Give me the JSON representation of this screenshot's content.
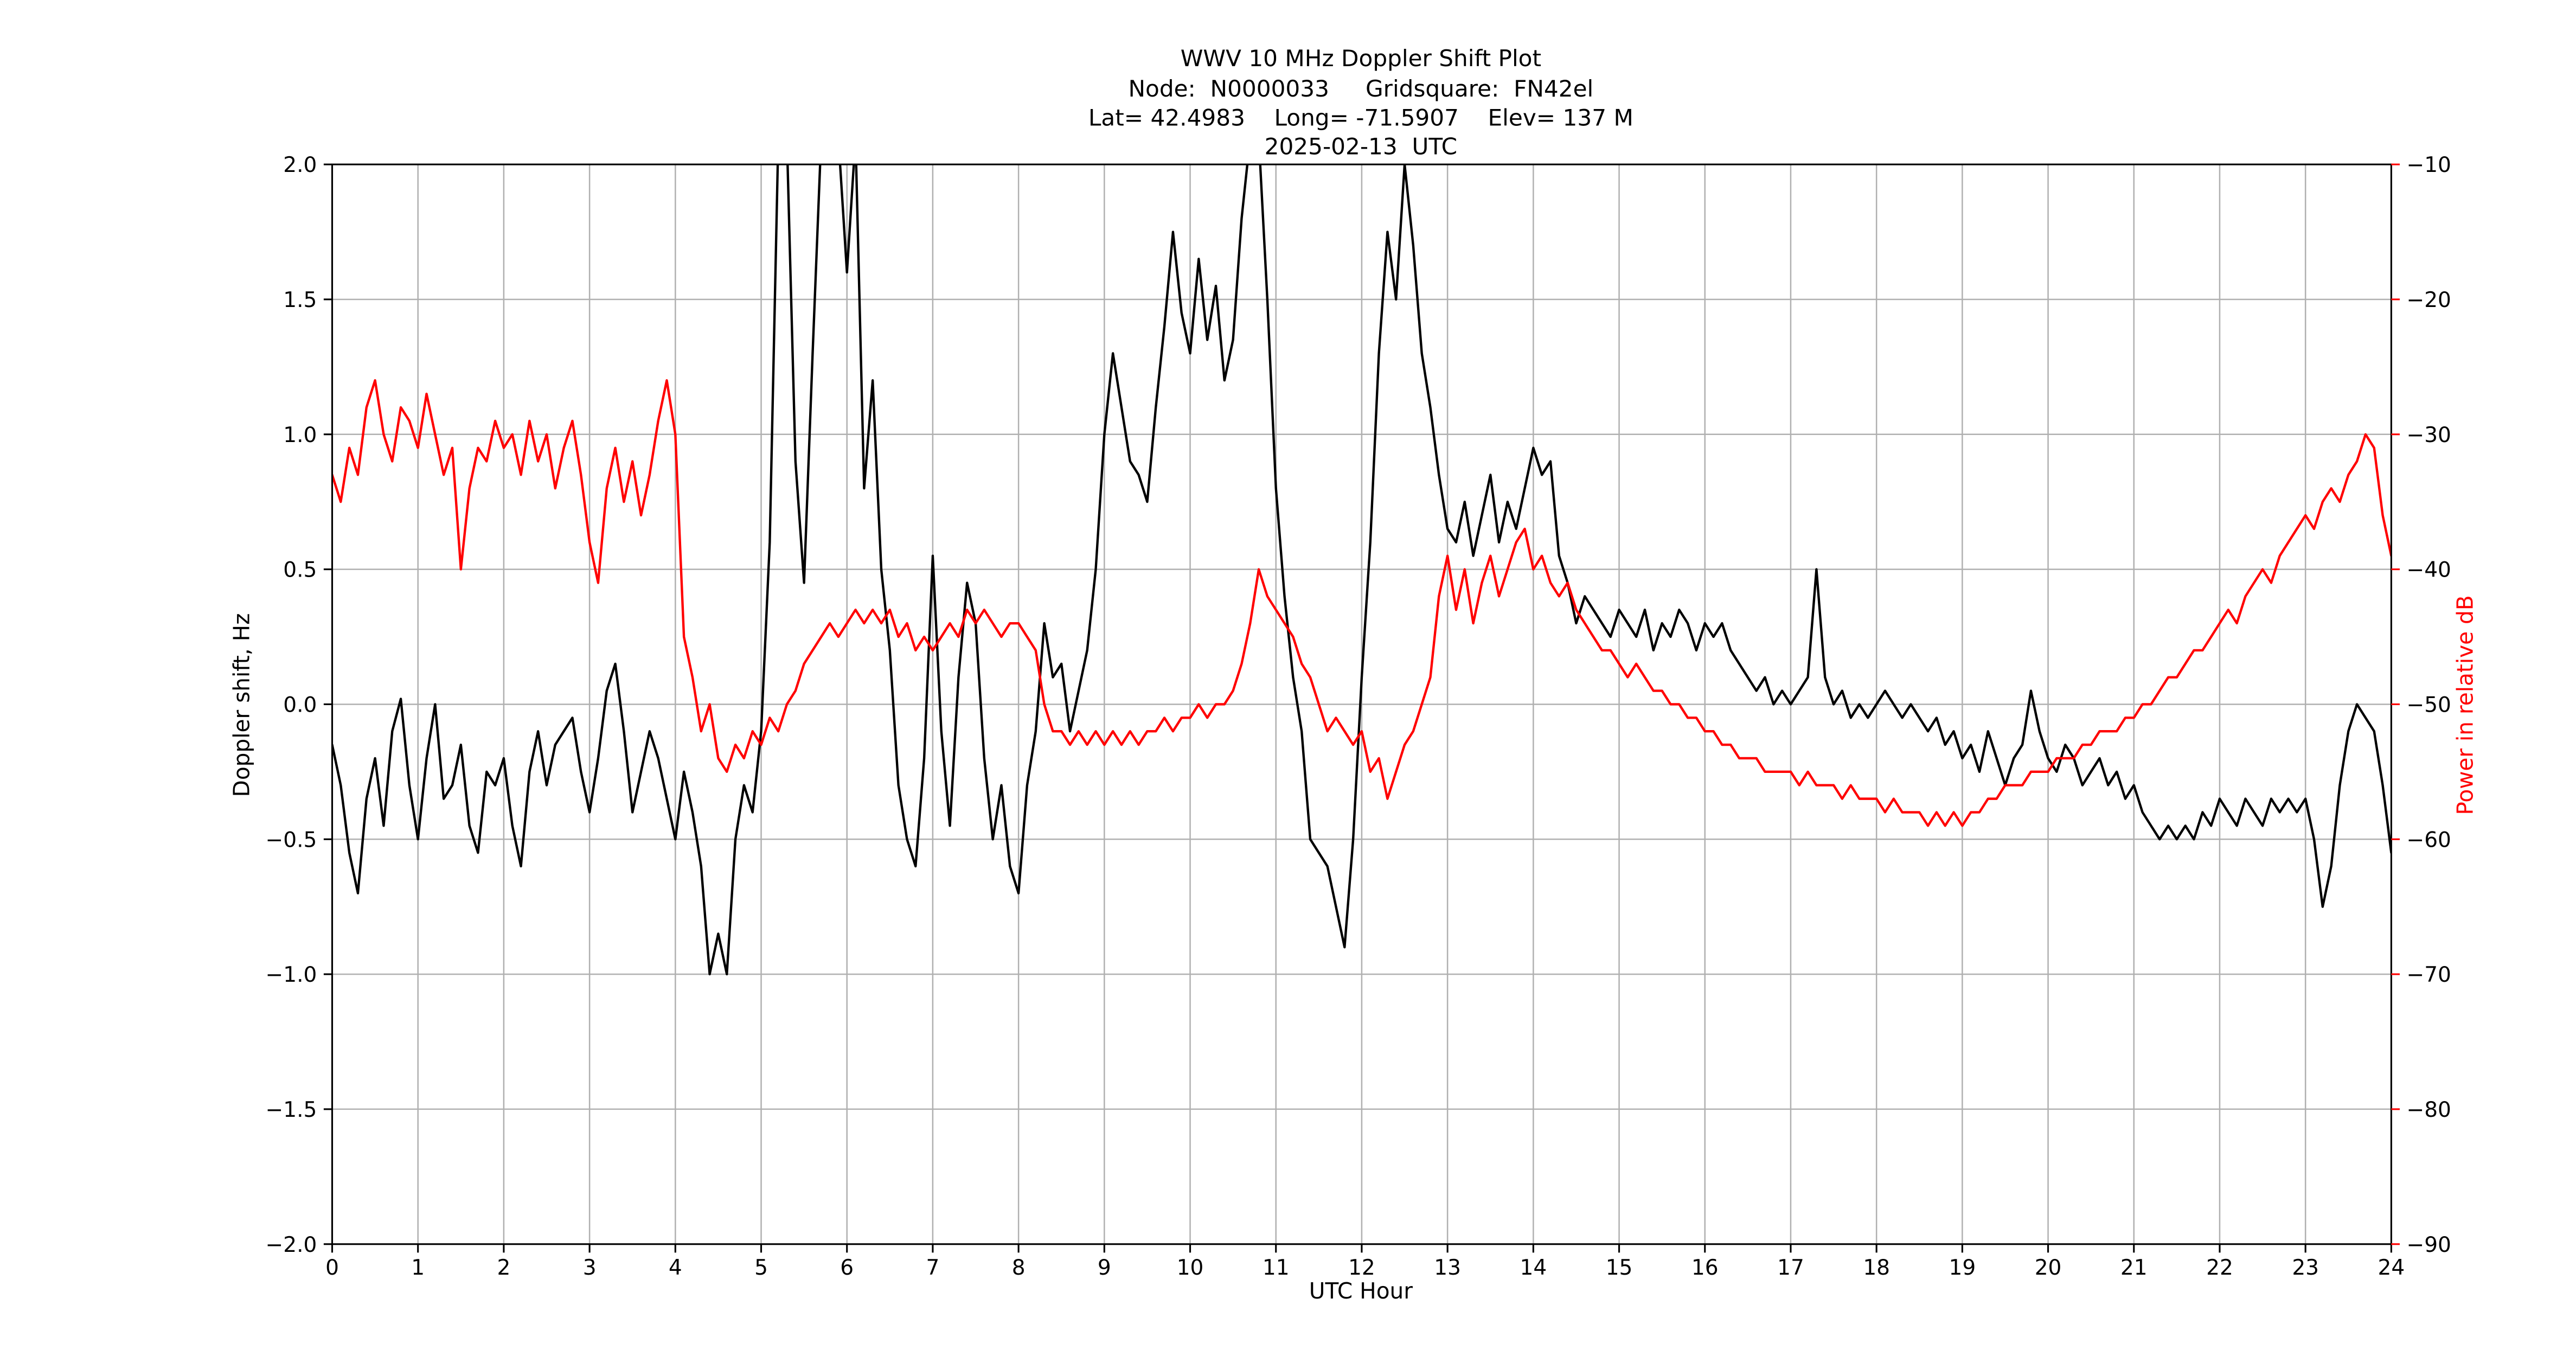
{
  "colors": {
    "background": "#ffffff",
    "doppler_line": "#000000",
    "power_line": "#ff0000",
    "grid": "#b0b0b0",
    "spine": "#000000",
    "right_axis_text": "#ff0000"
  },
  "chart_data": {
    "type": "line",
    "title_lines": [
      "WWV 10 MHz Doppler Shift Plot",
      "Node:  N0000033     Gridsquare:  FN42el",
      "Lat= 42.4983    Long= -71.5907    Elev= 137 M",
      "2025-02-13  UTC"
    ],
    "xlabel": "UTC Hour",
    "ylabel_left": "Doppler shift, Hz",
    "ylabel_right": "Power in relative dB",
    "grid": true,
    "legend": "none",
    "x_axis": {
      "min": 0,
      "max": 24,
      "tick_values": [
        0,
        1,
        2,
        3,
        4,
        5,
        6,
        7,
        8,
        9,
        10,
        11,
        12,
        13,
        14,
        15,
        16,
        17,
        18,
        19,
        20,
        21,
        22,
        23,
        24
      ],
      "tick_labels": [
        "0",
        "1",
        "2",
        "3",
        "4",
        "5",
        "6",
        "7",
        "8",
        "9",
        "10",
        "11",
        "12",
        "13",
        "14",
        "15",
        "16",
        "17",
        "18",
        "19",
        "20",
        "21",
        "22",
        "23",
        "24"
      ]
    },
    "y_left_axis": {
      "min": -2.0,
      "max": 2.0,
      "tick_values": [
        2.0,
        1.5,
        1.0,
        0.5,
        0.0,
        -0.5,
        -1.0,
        -1.5,
        -2.0
      ],
      "tick_labels": [
        "2.0",
        "1.5",
        "1.0",
        "0.5",
        "0.0",
        "−0.5",
        "−1.0",
        "−1.5",
        "−2.0"
      ]
    },
    "y_right_axis": {
      "min": -90,
      "max": -10,
      "tick_values": [
        -10,
        -20,
        -30,
        -40,
        -50,
        -60,
        -70,
        -80,
        -90
      ],
      "tick_labels": [
        "−10",
        "−20",
        "−30",
        "−40",
        "−50",
        "−60",
        "−70",
        "−80",
        "−90"
      ]
    },
    "x_hours": {
      "start": 0.0,
      "step": 0.1,
      "count": 241
    },
    "series": [
      {
        "name": "Doppler shift, Hz",
        "axis": "left",
        "color": "#000000",
        "values": [
          -0.15,
          -0.3,
          -0.55,
          -0.7,
          -0.35,
          -0.2,
          -0.45,
          -0.1,
          0.02,
          -0.3,
          -0.5,
          -0.2,
          0.0,
          -0.35,
          -0.3,
          -0.15,
          -0.45,
          -0.55,
          -0.25,
          -0.3,
          -0.2,
          -0.45,
          -0.6,
          -0.25,
          -0.1,
          -0.3,
          -0.15,
          -0.1,
          -0.05,
          -0.25,
          -0.4,
          -0.2,
          0.05,
          0.15,
          -0.1,
          -0.4,
          -0.25,
          -0.1,
          -0.2,
          -0.35,
          -0.5,
          -0.25,
          -0.4,
          -0.6,
          -1.0,
          -0.85,
          -1.0,
          -0.5,
          -0.3,
          -0.4,
          -0.1,
          0.6,
          2.1,
          2.1,
          0.9,
          0.45,
          1.3,
          2.1,
          2.1,
          2.1,
          1.6,
          2.1,
          0.8,
          1.2,
          0.5,
          0.2,
          -0.3,
          -0.5,
          -0.6,
          -0.2,
          0.55,
          -0.1,
          -0.45,
          0.1,
          0.45,
          0.3,
          -0.2,
          -0.5,
          -0.3,
          -0.6,
          -0.7,
          -0.3,
          -0.1,
          0.3,
          0.1,
          0.15,
          -0.1,
          0.05,
          0.2,
          0.5,
          1.0,
          1.3,
          1.1,
          0.9,
          0.85,
          0.75,
          1.1,
          1.4,
          1.75,
          1.45,
          1.3,
          1.65,
          1.35,
          1.55,
          1.2,
          1.35,
          1.8,
          2.1,
          2.1,
          1.5,
          0.8,
          0.4,
          0.1,
          -0.1,
          -0.5,
          -0.55,
          -0.6,
          -0.75,
          -0.9,
          -0.5,
          0.1,
          0.6,
          1.3,
          1.75,
          1.5,
          2.0,
          1.7,
          1.3,
          1.1,
          0.85,
          0.65,
          0.6,
          0.75,
          0.55,
          0.7,
          0.85,
          0.6,
          0.75,
          0.65,
          0.8,
          0.95,
          0.85,
          0.9,
          0.55,
          0.45,
          0.3,
          0.4,
          0.35,
          0.3,
          0.25,
          0.35,
          0.3,
          0.25,
          0.35,
          0.2,
          0.3,
          0.25,
          0.35,
          0.3,
          0.2,
          0.3,
          0.25,
          0.3,
          0.2,
          0.15,
          0.1,
          0.05,
          0.1,
          0.0,
          0.05,
          0.0,
          0.05,
          0.1,
          0.5,
          0.1,
          0.0,
          0.05,
          -0.05,
          0.0,
          -0.05,
          0.0,
          0.05,
          0.0,
          -0.05,
          0.0,
          -0.05,
          -0.1,
          -0.05,
          -0.15,
          -0.1,
          -0.2,
          -0.15,
          -0.25,
          -0.1,
          -0.2,
          -0.3,
          -0.2,
          -0.15,
          0.05,
          -0.1,
          -0.2,
          -0.25,
          -0.15,
          -0.2,
          -0.3,
          -0.25,
          -0.2,
          -0.3,
          -0.25,
          -0.35,
          -0.3,
          -0.4,
          -0.45,
          -0.5,
          -0.45,
          -0.5,
          -0.45,
          -0.5,
          -0.4,
          -0.45,
          -0.35,
          -0.4,
          -0.45,
          -0.35,
          -0.4,
          -0.45,
          -0.35,
          -0.4,
          -0.35,
          -0.4,
          -0.35,
          -0.5,
          -0.75,
          -0.6,
          -0.3,
          -0.1,
          0.0,
          -0.05,
          -0.1,
          -0.3,
          -0.55
        ]
      },
      {
        "name": "Power in relative dB",
        "axis": "right",
        "color": "#ff0000",
        "values": [
          -33,
          -35,
          -31,
          -33,
          -28,
          -26,
          -30,
          -32,
          -28,
          -29,
          -31,
          -27,
          -30,
          -33,
          -31,
          -40,
          -34,
          -31,
          -32,
          -29,
          -31,
          -30,
          -33,
          -29,
          -32,
          -30,
          -34,
          -31,
          -29,
          -33,
          -38,
          -41,
          -34,
          -31,
          -35,
          -32,
          -36,
          -33,
          -29,
          -26,
          -30,
          -45,
          -48,
          -52,
          -50,
          -54,
          -55,
          -53,
          -54,
          -52,
          -53,
          -51,
          -52,
          -50,
          -49,
          -47,
          -46,
          -45,
          -44,
          -45,
          -44,
          -43,
          -44,
          -43,
          -44,
          -43,
          -45,
          -44,
          -46,
          -45,
          -46,
          -45,
          -44,
          -45,
          -43,
          -44,
          -43,
          -44,
          -45,
          -44,
          -44,
          -45,
          -46,
          -50,
          -52,
          -52,
          -53,
          -52,
          -53,
          -52,
          -53,
          -52,
          -53,
          -52,
          -53,
          -52,
          -52,
          -51,
          -52,
          -51,
          -51,
          -50,
          -51,
          -50,
          -50,
          -49,
          -47,
          -44,
          -40,
          -42,
          -43,
          -44,
          -45,
          -47,
          -48,
          -50,
          -52,
          -51,
          -52,
          -53,
          -52,
          -55,
          -54,
          -57,
          -55,
          -53,
          -52,
          -50,
          -48,
          -42,
          -39,
          -43,
          -40,
          -44,
          -41,
          -39,
          -42,
          -40,
          -38,
          -37,
          -40,
          -39,
          -41,
          -42,
          -41,
          -43,
          -44,
          -45,
          -46,
          -46,
          -47,
          -48,
          -47,
          -48,
          -49,
          -49,
          -50,
          -50,
          -51,
          -51,
          -52,
          -52,
          -53,
          -53,
          -54,
          -54,
          -54,
          -55,
          -55,
          -55,
          -55,
          -56,
          -55,
          -56,
          -56,
          -56,
          -57,
          -56,
          -57,
          -57,
          -57,
          -58,
          -57,
          -58,
          -58,
          -58,
          -59,
          -58,
          -59,
          -58,
          -59,
          -58,
          -58,
          -57,
          -57,
          -56,
          -56,
          -56,
          -55,
          -55,
          -55,
          -54,
          -54,
          -54,
          -53,
          -53,
          -52,
          -52,
          -52,
          -51,
          -51,
          -50,
          -50,
          -49,
          -48,
          -48,
          -47,
          -46,
          -46,
          -45,
          -44,
          -43,
          -44,
          -42,
          -41,
          -40,
          -41,
          -39,
          -38,
          -37,
          -36,
          -37,
          -35,
          -34,
          -35,
          -33,
          -32,
          -30,
          -31,
          -36,
          -39
        ]
      }
    ]
  }
}
